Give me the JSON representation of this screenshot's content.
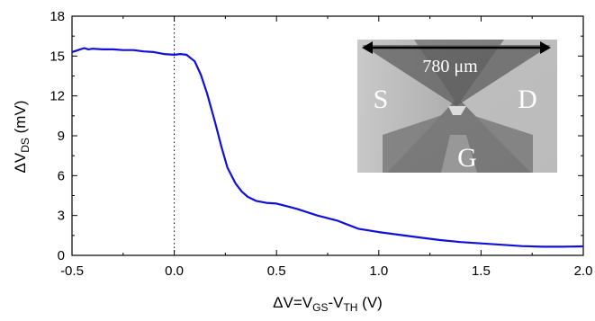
{
  "chart_data": {
    "type": "line",
    "xlabel": {
      "main": "ΔV=V",
      "sub1": "GS",
      "mid": "-V",
      "sub2": "TH",
      "end": " (V)"
    },
    "ylabel": {
      "main": "ΔV",
      "sub": "DS",
      "end": " (mV)"
    },
    "xlim": [
      -0.5,
      2.0
    ],
    "ylim": [
      0,
      18
    ],
    "xticks": [
      -0.5,
      0.0,
      0.5,
      1.0,
      1.5,
      2.0
    ],
    "xtick_labels": [
      "-0.5",
      "0.0",
      "0.5",
      "1.0",
      "1.5",
      "2.0"
    ],
    "yticks": [
      0,
      3,
      6,
      9,
      12,
      15,
      18
    ],
    "ytick_labels": [
      "0",
      "3",
      "6",
      "9",
      "12",
      "15",
      "18"
    ],
    "grid": false,
    "reference_line": {
      "x": 0.0,
      "style": "dotted"
    },
    "series": [
      {
        "color": "#1010d8",
        "x": [
          -0.5,
          -0.47,
          -0.44,
          -0.42,
          -0.4,
          -0.35,
          -0.3,
          -0.25,
          -0.2,
          -0.15,
          -0.1,
          -0.05,
          0.0,
          0.03,
          0.06,
          0.1,
          0.13,
          0.16,
          0.2,
          0.23,
          0.26,
          0.3,
          0.33,
          0.36,
          0.4,
          0.45,
          0.5,
          0.55,
          0.6,
          0.7,
          0.8,
          0.9,
          1.0,
          1.1,
          1.2,
          1.3,
          1.4,
          1.5,
          1.6,
          1.7,
          1.8,
          1.9,
          2.0
        ],
        "y": [
          15.3,
          15.45,
          15.6,
          15.5,
          15.55,
          15.5,
          15.5,
          15.45,
          15.45,
          15.35,
          15.3,
          15.15,
          15.1,
          15.15,
          15.1,
          14.6,
          13.6,
          12.2,
          10.0,
          8.2,
          6.6,
          5.4,
          4.8,
          4.4,
          4.1,
          3.95,
          3.9,
          3.7,
          3.5,
          3.0,
          2.6,
          2.0,
          1.75,
          1.55,
          1.35,
          1.15,
          1.0,
          0.9,
          0.8,
          0.7,
          0.65,
          0.65,
          0.68
        ]
      }
    ]
  },
  "inset": {
    "scale_label": "780 μm",
    "source_label": "S",
    "drain_label": "D",
    "gate_label": "G"
  }
}
